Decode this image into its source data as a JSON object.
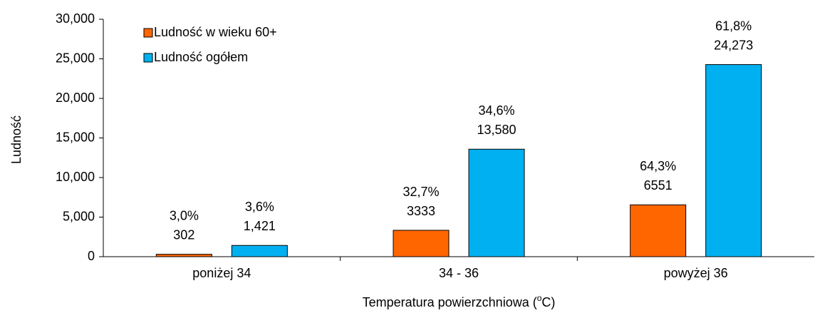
{
  "chart_data": {
    "type": "bar",
    "ylabel": "Ludność",
    "xlabel": [
      "Temperatura powierzchniowa (",
      "o",
      "C)"
    ],
    "categories": [
      "poniżej 34",
      "34 - 36",
      "powyżej 36"
    ],
    "series": [
      {
        "name": "Ludność w wieku 60+",
        "color": "#ff6600",
        "values": [
          302,
          3333,
          6551
        ],
        "value_labels": [
          "302",
          "3333",
          "6551"
        ],
        "percentages": [
          3.0,
          32.7,
          64.3
        ],
        "percentage_labels": [
          "3,0%",
          "32,7%",
          "64,3%"
        ]
      },
      {
        "name": "Ludność ogółem",
        "color": "#00b0f0",
        "values": [
          1421,
          13580,
          24273
        ],
        "value_labels": [
          "1,421",
          "13,580",
          "24,273"
        ],
        "percentages": [
          3.6,
          34.6,
          61.8
        ],
        "percentage_labels": [
          "3,6%",
          "34,6%",
          "61,8%"
        ]
      }
    ],
    "ylim": [
      0,
      30000
    ],
    "yticks": [
      0,
      {
        "value": 5000,
        "label": "5,000"
      },
      {
        "value": 10000,
        "label": "10,000"
      },
      {
        "value": 15000,
        "label": "15,000"
      },
      {
        "value": 20000,
        "label": "20,000"
      },
      {
        "value": 25000,
        "label": "25,000"
      },
      {
        "value": 30000,
        "label": "30,000"
      }
    ],
    "legend": "top-left"
  }
}
